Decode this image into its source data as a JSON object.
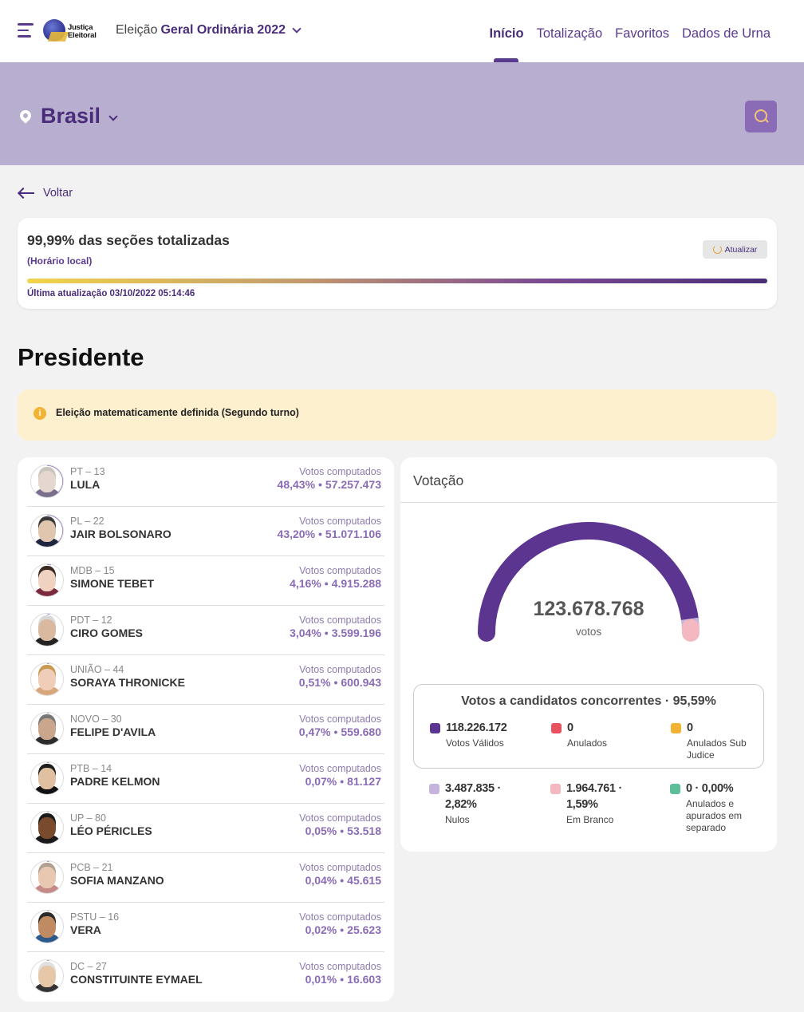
{
  "header": {
    "logo_text_1": "Justiça",
    "logo_text_2": "Eleitoral",
    "election_prefix": "Eleição",
    "election_name": "Geral Ordinária 2022",
    "nav": [
      "Início",
      "Totalização",
      "Favoritos",
      "Dados de Urna"
    ],
    "active_nav": "Início"
  },
  "region": {
    "name": "Brasil"
  },
  "back_label": "Voltar",
  "progress": {
    "title": "99,99% das seções totalizadas",
    "subtitle": "(Horário local)",
    "refresh_label": "Atualizar",
    "updated": "Última atualização 03/10/2022 05:14:46",
    "percent": 99.99
  },
  "section_title": "Presidente",
  "notice": "Eleição matematicamente definida (Segundo turno)",
  "candidates": [
    {
      "party": "PT – 13",
      "name": "LULA",
      "votes_label": "Votos computados",
      "percent": "48,43%",
      "votes": "57.257.473",
      "share": 48.43
    },
    {
      "party": "PL – 22",
      "name": "JAIR BOLSONARO",
      "votes_label": "Votos computados",
      "percent": "43,20%",
      "votes": "51.071.106",
      "share": 43.2
    },
    {
      "party": "MDB – 15",
      "name": "SIMONE TEBET",
      "votes_label": "Votos computados",
      "percent": "4,16%",
      "votes": "4.915.288",
      "share": 4.16
    },
    {
      "party": "PDT – 12",
      "name": "CIRO GOMES",
      "votes_label": "Votos computados",
      "percent": "3,04%",
      "votes": "3.599.196",
      "share": 3.04
    },
    {
      "party": "UNIÃO – 44",
      "name": "SORAYA THRONICKE",
      "votes_label": "Votos computados",
      "percent": "0,51%",
      "votes": "600.943",
      "share": 0.51
    },
    {
      "party": "NOVO – 30",
      "name": "FELIPE D'AVILA",
      "votes_label": "Votos computados",
      "percent": "0,47%",
      "votes": "559.680",
      "share": 0.47
    },
    {
      "party": "PTB – 14",
      "name": "PADRE KELMON",
      "votes_label": "Votos computados",
      "percent": "0,07%",
      "votes": "81.127",
      "share": 0.07
    },
    {
      "party": "UP – 80",
      "name": "LÉO PÉRICLES",
      "votes_label": "Votos computados",
      "percent": "0,05%",
      "votes": "53.518",
      "share": 0.05
    },
    {
      "party": "PCB – 21",
      "name": "SOFIA MANZANO",
      "votes_label": "Votos computados",
      "percent": "0,04%",
      "votes": "45.615",
      "share": 0.04
    },
    {
      "party": "PSTU – 16",
      "name": "VERA",
      "votes_label": "Votos computados",
      "percent": "0,02%",
      "votes": "25.623",
      "share": 0.02
    },
    {
      "party": "DC – 27",
      "name": "CONSTITUINTE EYMAEL",
      "votes_label": "Votos computados",
      "percent": "0,01%",
      "votes": "16.603",
      "share": 0.01
    }
  ],
  "votacao": {
    "title": "Votação",
    "total": "123.678.768",
    "unit": "votos",
    "gauge_shares": {
      "valid": 95.59,
      "nulos": 2.82,
      "brancos": 1.59
    },
    "box_title": "Votos a candidatos concorrentes · 95,59%",
    "stats_box": [
      {
        "value": "118.226.172",
        "label": "Votos Válidos",
        "color": "#5b3590"
      },
      {
        "value": "0",
        "label": "Anulados",
        "color": "#e8515e"
      },
      {
        "value": "0",
        "label": "Anulados Sub Judice",
        "color": "#f2b234"
      }
    ],
    "stats_bottom": [
      {
        "value": "3.487.835 · 2,82%",
        "label": "Nulos",
        "color": "#c5b5dc"
      },
      {
        "value": "1.964.761 · 1,59%",
        "label": "Em Branco",
        "color": "#f4b8c0"
      },
      {
        "value": "0 · 0,00%",
        "label": "Anulados e apurados em separado",
        "color": "#5cbf97"
      }
    ]
  },
  "colors": {
    "brand": "#4a2d7a",
    "band": "#b8aed0",
    "accent": "#8a6bb5"
  }
}
